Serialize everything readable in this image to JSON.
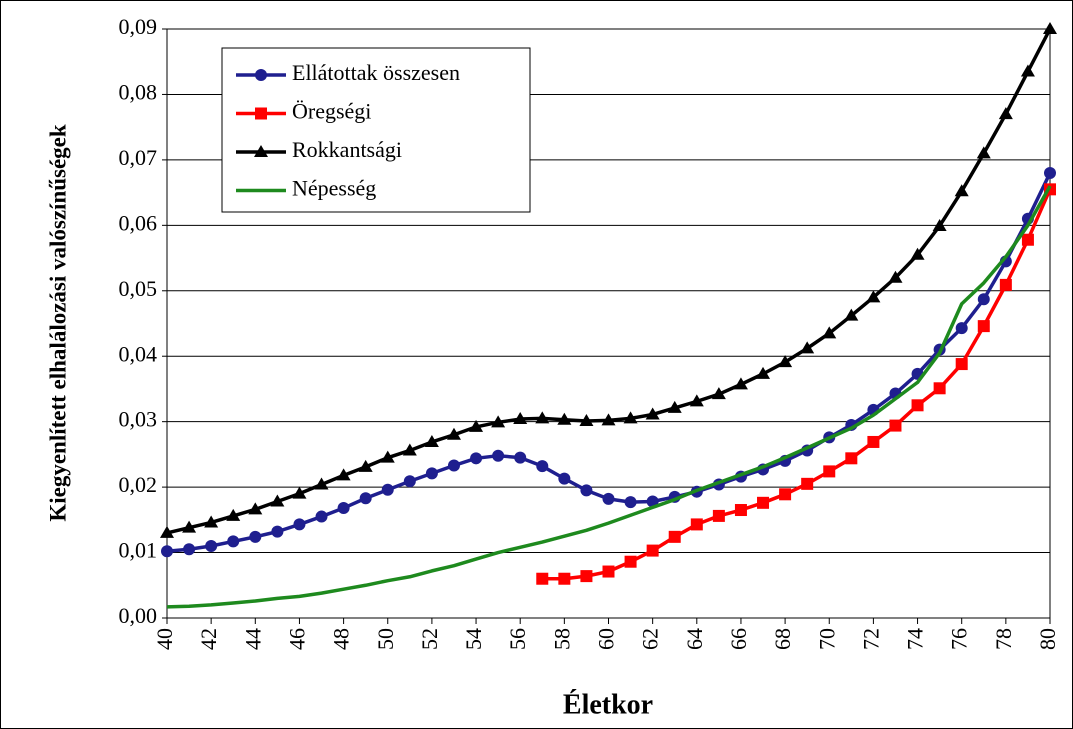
{
  "chart_data": {
    "type": "line",
    "xlabel": "Életkor",
    "ylabel": "Kiegyenlített elhalálozási valószínűségek",
    "x": [
      40,
      41,
      42,
      43,
      44,
      45,
      46,
      47,
      48,
      49,
      50,
      51,
      52,
      53,
      54,
      55,
      56,
      57,
      58,
      59,
      60,
      61,
      62,
      63,
      64,
      65,
      66,
      67,
      68,
      69,
      70,
      71,
      72,
      73,
      74,
      75,
      76,
      77,
      78,
      79,
      80
    ],
    "xlim": [
      40,
      80
    ],
    "xticks": [
      40,
      42,
      44,
      46,
      48,
      50,
      52,
      54,
      56,
      58,
      60,
      62,
      64,
      66,
      68,
      70,
      72,
      74,
      76,
      78,
      80
    ],
    "ylim": [
      0,
      0.09
    ],
    "yticks": [
      {
        "value": 0,
        "label": "0,00"
      },
      {
        "value": 0.01,
        "label": "0,01"
      },
      {
        "value": 0.02,
        "label": "0,02"
      },
      {
        "value": 0.03,
        "label": "0,03"
      },
      {
        "value": 0.04,
        "label": "0,04"
      },
      {
        "value": 0.05,
        "label": "0,05"
      },
      {
        "value": 0.06,
        "label": "0,06"
      },
      {
        "value": 0.07,
        "label": "0,07"
      },
      {
        "value": 0.08,
        "label": "0,08"
      },
      {
        "value": 0.09,
        "label": "0,09"
      }
    ],
    "grid": true,
    "legend": "upper left",
    "series": [
      {
        "name": "Ellátottak összesen",
        "color": "#1f1f8f",
        "marker": "circle",
        "values": [
          0.0102,
          0.0105,
          0.011,
          0.0117,
          0.0124,
          0.0132,
          0.0143,
          0.0155,
          0.0168,
          0.0183,
          0.0196,
          0.0209,
          0.0221,
          0.0233,
          0.0244,
          0.0248,
          0.0245,
          0.0232,
          0.0213,
          0.0195,
          0.0182,
          0.0177,
          0.0178,
          0.0185,
          0.0193,
          0.0204,
          0.0216,
          0.0227,
          0.024,
          0.0256,
          0.0276,
          0.0295,
          0.0318,
          0.0343,
          0.0373,
          0.041,
          0.0443,
          0.0487,
          0.0545,
          0.061,
          0.068
        ]
      },
      {
        "name": "Öregségi",
        "color": "#ff0000",
        "marker": "square",
        "values": [
          null,
          null,
          null,
          null,
          null,
          null,
          null,
          null,
          null,
          null,
          null,
          null,
          null,
          null,
          null,
          null,
          null,
          0.006,
          0.006,
          0.0064,
          0.0071,
          0.0086,
          0.0103,
          0.0124,
          0.0143,
          0.0156,
          0.0165,
          0.0176,
          0.0189,
          0.0205,
          0.0224,
          0.0244,
          0.0269,
          0.0294,
          0.0325,
          0.0351,
          0.0388,
          0.0446,
          0.0509,
          0.0578,
          0.0655
        ]
      },
      {
        "name": "Rokkantsági",
        "color": "#000000",
        "marker": "triangle",
        "values": [
          0.013,
          0.0138,
          0.0146,
          0.0156,
          0.0166,
          0.0178,
          0.019,
          0.0204,
          0.0218,
          0.0231,
          0.0245,
          0.0256,
          0.0269,
          0.028,
          0.0292,
          0.0299,
          0.0304,
          0.0305,
          0.0303,
          0.0301,
          0.0302,
          0.0305,
          0.0311,
          0.0321,
          0.0331,
          0.0342,
          0.0357,
          0.0373,
          0.0391,
          0.0412,
          0.0435,
          0.0462,
          0.049,
          0.052,
          0.0555,
          0.0599,
          0.0652,
          0.071,
          0.077,
          0.0835,
          0.09
        ]
      },
      {
        "name": "Népesség",
        "color": "#1e8a1e",
        "marker": "none",
        "values": [
          0.0017,
          0.0018,
          0.002,
          0.0023,
          0.0026,
          0.003,
          0.0033,
          0.0038,
          0.0044,
          0.005,
          0.0057,
          0.0063,
          0.0072,
          0.008,
          0.009,
          0.01,
          0.0108,
          0.0116,
          0.0125,
          0.0134,
          0.0145,
          0.0157,
          0.0169,
          0.0181,
          0.0195,
          0.0207,
          0.0219,
          0.0231,
          0.0245,
          0.026,
          0.0275,
          0.029,
          0.031,
          0.0335,
          0.036,
          0.0405,
          0.048,
          0.0512,
          0.0552,
          0.06,
          0.066
        ]
      }
    ]
  }
}
